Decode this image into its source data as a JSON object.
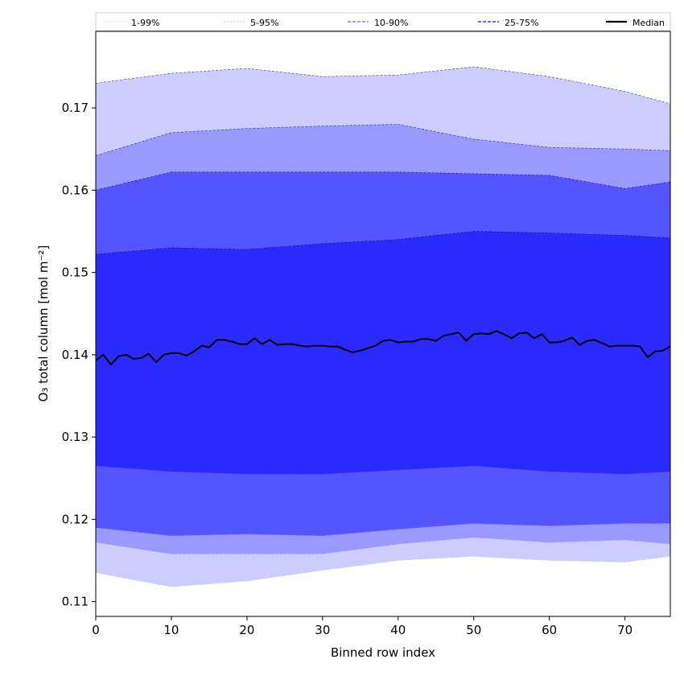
{
  "chart_data": {
    "type": "area",
    "title": "",
    "xlabel": "Binned row index",
    "ylabel": "O₃ total column [mol m⁻²]",
    "xlim": [
      0,
      76
    ],
    "ylim": [
      0.1082,
      0.1793
    ],
    "xticks": [
      0,
      10,
      20,
      30,
      40,
      50,
      60,
      70
    ],
    "yticks": [
      0.11,
      0.12,
      0.13,
      0.14,
      0.15,
      0.16,
      0.17
    ],
    "legend_position": "top",
    "legend": [
      {
        "label": "1-99%",
        "color": "#ccccff"
      },
      {
        "label": "5-95%",
        "color": "#9999ff"
      },
      {
        "label": "10-90%",
        "color": "#6666ff"
      },
      {
        "label": "25-75%",
        "color": "#3333ff"
      },
      {
        "label": "Median",
        "color": "#000000"
      }
    ],
    "bands": [
      {
        "name": "1-99%",
        "fill": "#ccccff",
        "line": "#ccccff",
        "lower": {
          "x": [
            0,
            10,
            20,
            30,
            40,
            50,
            60,
            70,
            76
          ],
          "y": [
            0.1135,
            0.1118,
            0.1125,
            0.1138,
            0.115,
            0.1155,
            0.115,
            0.1148,
            0.1155
          ]
        },
        "upper": {
          "x": [
            0,
            10,
            20,
            30,
            40,
            50,
            60,
            70,
            76
          ],
          "y": [
            0.173,
            0.1742,
            0.1748,
            0.1738,
            0.174,
            0.175,
            0.1738,
            0.172,
            0.1705
          ]
        }
      },
      {
        "name": "5-95%",
        "fill": "#9999ff",
        "line": "#9999ff",
        "lower": {
          "x": [
            0,
            10,
            20,
            30,
            40,
            50,
            60,
            70,
            76
          ],
          "y": [
            0.1172,
            0.1158,
            0.1158,
            0.1158,
            0.117,
            0.1178,
            0.1172,
            0.1175,
            0.117
          ]
        },
        "upper": {
          "x": [
            0,
            10,
            20,
            30,
            40,
            50,
            60,
            70,
            76
          ],
          "y": [
            0.1642,
            0.167,
            0.1675,
            0.1678,
            0.168,
            0.1662,
            0.1652,
            0.165,
            0.1648
          ]
        }
      },
      {
        "name": "10-90%",
        "fill": "#5555ff",
        "line": "#6666ff",
        "lower": {
          "x": [
            0,
            10,
            20,
            30,
            40,
            50,
            60,
            70,
            76
          ],
          "y": [
            0.119,
            0.118,
            0.1182,
            0.118,
            0.1188,
            0.1195,
            0.1192,
            0.1195,
            0.1195
          ]
        },
        "upper": {
          "x": [
            0,
            10,
            20,
            30,
            40,
            50,
            60,
            70,
            76
          ],
          "y": [
            0.16,
            0.1622,
            0.1622,
            0.1622,
            0.1622,
            0.162,
            0.1618,
            0.1602,
            0.161
          ]
        }
      },
      {
        "name": "25-75%",
        "fill": "#2a2aff",
        "line": "#3333ff",
        "lower": {
          "x": [
            0,
            10,
            20,
            30,
            40,
            50,
            60,
            70,
            76
          ],
          "y": [
            0.1265,
            0.1258,
            0.1255,
            0.1255,
            0.126,
            0.1265,
            0.1258,
            0.1255,
            0.1258
          ]
        },
        "upper": {
          "x": [
            0,
            10,
            20,
            30,
            40,
            50,
            60,
            70,
            76
          ],
          "y": [
            0.1522,
            0.153,
            0.1528,
            0.1535,
            0.154,
            0.155,
            0.1548,
            0.1545,
            0.1542
          ]
        }
      }
    ],
    "series": [
      {
        "name": "Median",
        "color": "#000000",
        "x": [
          0,
          1,
          2,
          3,
          4,
          5,
          6,
          7,
          8,
          9,
          10,
          11,
          12,
          13,
          14,
          15,
          16,
          17,
          18,
          19,
          20,
          21,
          22,
          23,
          24,
          25,
          26,
          27,
          28,
          29,
          30,
          31,
          32,
          33,
          34,
          35,
          36,
          37,
          38,
          39,
          40,
          41,
          42,
          43,
          44,
          45,
          46,
          47,
          48,
          49,
          50,
          51,
          52,
          53,
          54,
          55,
          56,
          57,
          58,
          59,
          60,
          61,
          62,
          63,
          64,
          65,
          66,
          67,
          68,
          69,
          70,
          71,
          72,
          73,
          74,
          75,
          76
        ],
        "values": [
          0.1393,
          0.14,
          0.1388,
          0.1398,
          0.14,
          0.1395,
          0.1396,
          0.1401,
          0.1391,
          0.14,
          0.1402,
          0.1402,
          0.1399,
          0.1404,
          0.1411,
          0.1409,
          0.1418,
          0.1418,
          0.1416,
          0.1413,
          0.1413,
          0.142,
          0.1413,
          0.1418,
          0.1412,
          0.1413,
          0.1413,
          0.1411,
          0.141,
          0.1411,
          0.1411,
          0.141,
          0.141,
          0.1406,
          0.1403,
          0.1405,
          0.1408,
          0.1411,
          0.1417,
          0.1418,
          0.1415,
          0.1416,
          0.1416,
          0.1419,
          0.1419,
          0.1417,
          0.1423,
          0.1425,
          0.1427,
          0.1417,
          0.1425,
          0.1426,
          0.1425,
          0.1429,
          0.1425,
          0.142,
          0.1426,
          0.1427,
          0.142,
          0.1425,
          0.1415,
          0.1415,
          0.1417,
          0.1421,
          0.1412,
          0.1417,
          0.1418,
          0.1414,
          0.141,
          0.1411,
          0.1411,
          0.1411,
          0.141,
          0.1397,
          0.1404,
          0.1405,
          0.141
        ]
      }
    ]
  }
}
